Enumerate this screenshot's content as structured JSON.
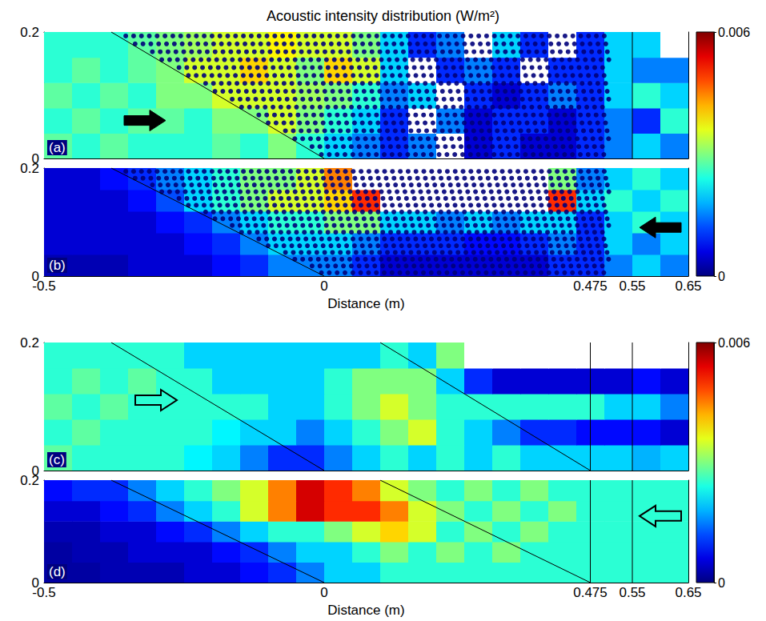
{
  "title": "Acoustic intensity distribution (W/m²)",
  "colorbars": [
    {
      "range": [
        0,
        0.006
      ],
      "ticks": [
        0,
        0.006
      ]
    },
    {
      "range": [
        0,
        0.006
      ],
      "ticks": [
        0,
        0.006
      ]
    }
  ],
  "chart_data": [
    {
      "type": "heatmap",
      "label": "(a)",
      "xlim": [
        -0.5,
        0.65
      ],
      "ylim": [
        0,
        0.2
      ],
      "yticks": [
        0,
        0.2
      ],
      "tick_labels": "y",
      "x": [
        -0.475,
        -0.425,
        -0.375,
        -0.325,
        -0.275,
        -0.225,
        -0.175,
        -0.125,
        -0.075,
        -0.025,
        0.025,
        0.075,
        0.125,
        0.175,
        0.225,
        0.275,
        0.325,
        0.375,
        0.425,
        0.475,
        0.525,
        0.575,
        0.625
      ],
      "y": [
        0.02,
        0.06,
        0.1,
        0.14,
        0.18
      ],
      "intensity": [
        [
          0.0028,
          0.0025,
          0.0028,
          0.0025,
          0.0025,
          0.0025,
          0.0028,
          0.0025,
          0.003,
          0.0025,
          0.002,
          0.0015,
          0.001,
          0.0015,
          0.007,
          0.0005,
          0.001,
          0.0005,
          0.0005,
          0.001,
          0.0015,
          0.002,
          0.0015
        ],
        [
          0.0025,
          0.0028,
          0.0025,
          0.0028,
          0.0028,
          0.0025,
          0.003,
          0.003,
          0.0035,
          0.003,
          0.0025,
          0.002,
          0.001,
          0.007,
          0.0015,
          0.0005,
          0.001,
          0.001,
          0.0005,
          0.001,
          0.0015,
          0.001,
          0.0025
        ],
        [
          0.0028,
          0.0025,
          0.0028,
          0.0025,
          0.003,
          0.003,
          0.0035,
          0.0035,
          0.0035,
          0.0032,
          0.003,
          0.0025,
          0.0015,
          0.002,
          0.007,
          0.001,
          0.0005,
          0.001,
          0.0015,
          0.001,
          0.002,
          0.0025,
          0.002
        ],
        [
          0.0025,
          0.0028,
          0.0025,
          0.0028,
          0.003,
          0.0035,
          0.0035,
          0.004,
          0.0035,
          0.003,
          0.004,
          0.0035,
          0.002,
          0.007,
          0.001,
          0.0015,
          0.001,
          0.007,
          0.001,
          0.001,
          0.002,
          0.0015,
          0.0015
        ],
        [
          0.0025,
          0.0025,
          0.0025,
          0.0028,
          0.003,
          0.0032,
          0.0035,
          0.0035,
          0.0038,
          0.0035,
          0.0035,
          0.003,
          0.002,
          0.001,
          0.0015,
          0.007,
          0.002,
          0.001,
          0.007,
          0.001,
          0.002,
          0.002,
          0.007
        ]
      ],
      "lines": [
        {
          "x": [
            -0.38,
            0
          ],
          "y": [
            0.2,
            0
          ]
        },
        {
          "x": [
            0.55,
            0.55
          ],
          "y": [
            0,
            0.2
          ]
        }
      ],
      "arrow": {
        "direction": "right",
        "style": "filled",
        "x": -0.32,
        "y": 0.06
      },
      "scatterers": {
        "x_max": 0.51,
        "pitch_x": 0.014,
        "pitch_y": 0.0125
      }
    },
    {
      "type": "heatmap",
      "label": "(b)",
      "xlim": [
        -0.5,
        0.65
      ],
      "ylim": [
        0,
        0.2
      ],
      "yticks": [
        0,
        0.2
      ],
      "xticks": [
        -0.5,
        0,
        0.475,
        0.55,
        0.65
      ],
      "x_label": "Distance (m)",
      "x": [
        -0.475,
        -0.425,
        -0.375,
        -0.325,
        -0.275,
        -0.225,
        -0.175,
        -0.125,
        -0.075,
        -0.025,
        0.025,
        0.075,
        0.125,
        0.175,
        0.225,
        0.275,
        0.325,
        0.375,
        0.425,
        0.475,
        0.525,
        0.575,
        0.625
      ],
      "y": [
        0.02,
        0.06,
        0.1,
        0.14,
        0.18
      ],
      "intensity": [
        [
          0.0003,
          0.0003,
          0.0003,
          0.0005,
          0.0005,
          0.0005,
          0.0008,
          0.001,
          0.0015,
          0.0015,
          0.0015,
          0.001,
          0.0005,
          0.0005,
          0.0005,
          0.0005,
          0.0005,
          0.0005,
          0.001,
          0.001,
          0.0015,
          0.002,
          0.0015
        ],
        [
          0.0005,
          0.0005,
          0.0005,
          0.0005,
          0.0005,
          0.0008,
          0.001,
          0.0015,
          0.002,
          0.002,
          0.002,
          0.0015,
          0.001,
          0.001,
          0.001,
          0.0008,
          0.0008,
          0.001,
          0.0015,
          0.001,
          0.002,
          0.0015,
          0.002
        ],
        [
          0.0005,
          0.0005,
          0.0005,
          0.0005,
          0.0008,
          0.001,
          0.0015,
          0.002,
          0.0025,
          0.0025,
          0.003,
          0.003,
          0.002,
          0.002,
          0.0015,
          0.002,
          0.0015,
          0.002,
          0.002,
          0.001,
          0.002,
          0.0025,
          0.002
        ],
        [
          0.0005,
          0.0005,
          0.0005,
          0.0008,
          0.0012,
          0.002,
          0.0025,
          0.003,
          0.0035,
          0.0035,
          0.004,
          0.005,
          0.007,
          0.007,
          0.007,
          0.007,
          0.007,
          0.007,
          0.005,
          0.002,
          0.0025,
          0.002,
          0.0025
        ],
        [
          0.0005,
          0.0005,
          0.0008,
          0.001,
          0.0015,
          0.002,
          0.0025,
          0.003,
          0.003,
          0.0035,
          0.0045,
          0.007,
          0.007,
          0.007,
          0.007,
          0.007,
          0.007,
          0.007,
          0.003,
          0.0015,
          0.002,
          0.0025,
          0.002
        ]
      ],
      "lines": [
        {
          "x": [
            -0.38,
            0
          ],
          "y": [
            0.2,
            0
          ]
        }
      ],
      "arrow": {
        "direction": "left",
        "style": "filled",
        "x": 0.6,
        "y": 0.09
      },
      "scatterers": {
        "x_max": 0.51,
        "pitch_x": 0.014,
        "pitch_y": 0.0125
      }
    },
    {
      "type": "heatmap",
      "label": "(c)",
      "xlim": [
        -0.5,
        0.65
      ],
      "ylim": [
        0,
        0.2
      ],
      "yticks": [
        0,
        0.2
      ],
      "tick_labels": "y",
      "x": [
        -0.475,
        -0.425,
        -0.375,
        -0.325,
        -0.275,
        -0.225,
        -0.175,
        -0.125,
        -0.075,
        -0.025,
        0.025,
        0.075,
        0.125,
        0.175,
        0.225,
        0.275,
        0.325,
        0.375,
        0.425,
        0.475,
        0.525,
        0.575,
        0.625
      ],
      "y": [
        0.02,
        0.06,
        0.1,
        0.14,
        0.18
      ],
      "intensity": [
        [
          0.0028,
          0.0025,
          0.0025,
          0.0025,
          0.0025,
          0.0022,
          0.002,
          0.0015,
          0.001,
          0.001,
          0.0015,
          0.002,
          0.0025,
          0.002,
          0.0025,
          0.002,
          0.0025,
          0.002,
          0.002,
          0.002,
          0.002,
          0.0018,
          0.002
        ],
        [
          0.0025,
          0.0028,
          0.0025,
          0.0025,
          0.0025,
          0.0025,
          0.0022,
          0.002,
          0.002,
          0.0015,
          0.002,
          0.0025,
          0.003,
          0.0035,
          0.0025,
          0.002,
          0.0015,
          0.001,
          0.001,
          0.0008,
          0.0008,
          0.0008,
          0.0005
        ],
        [
          0.0028,
          0.0025,
          0.0028,
          0.0025,
          0.0025,
          0.0025,
          0.0025,
          0.0025,
          0.002,
          0.002,
          0.0025,
          0.003,
          0.0035,
          0.003,
          0.0025,
          0.0025,
          0.0025,
          0.0025,
          0.0025,
          0.0025,
          0.002,
          0.002,
          0.0015
        ],
        [
          0.0025,
          0.0028,
          0.0025,
          0.0028,
          0.0025,
          0.0025,
          0.002,
          0.002,
          0.002,
          0.002,
          0.0025,
          0.003,
          0.003,
          0.003,
          0.002,
          0.001,
          0.0005,
          0.0005,
          0.0005,
          0.0005,
          0.0005,
          0.0008,
          0.0005
        ],
        [
          0.0025,
          0.0025,
          0.0025,
          0.0025,
          0.0025,
          0.002,
          0.002,
          0.002,
          0.002,
          0.002,
          0.002,
          0.002,
          0.0025,
          0.002,
          0.003,
          0.007,
          0.007,
          0.007,
          0.007,
          0.007,
          0.007,
          0.007,
          0.007
        ]
      ],
      "lines": [
        {
          "x": [
            -0.38,
            0
          ],
          "y": [
            0.2,
            0
          ]
        },
        {
          "x": [
            0.1,
            0.475
          ],
          "y": [
            0.2,
            0
          ]
        },
        {
          "x": [
            0.475,
            0.475
          ],
          "y": [
            0,
            0.2
          ]
        },
        {
          "x": [
            0.55,
            0.55
          ],
          "y": [
            0,
            0.2
          ]
        }
      ],
      "arrow": {
        "direction": "right",
        "style": "hollow",
        "x": -0.3,
        "y": 0.11
      }
    },
    {
      "type": "heatmap",
      "label": "(d)",
      "xlim": [
        -0.5,
        0.65
      ],
      "ylim": [
        0,
        0.2
      ],
      "yticks": [
        0,
        0.2
      ],
      "xticks": [
        -0.5,
        0,
        0.475,
        0.55,
        0.65
      ],
      "x_label": "Distance (m)",
      "x": [
        -0.475,
        -0.425,
        -0.375,
        -0.325,
        -0.275,
        -0.225,
        -0.175,
        -0.125,
        -0.075,
        -0.025,
        0.025,
        0.075,
        0.125,
        0.175,
        0.225,
        0.275,
        0.325,
        0.375,
        0.425,
        0.475,
        0.525,
        0.575,
        0.625
      ],
      "y": [
        0.02,
        0.06,
        0.1,
        0.14,
        0.18
      ],
      "intensity": [
        [
          0.0002,
          0.0002,
          0.0003,
          0.0003,
          0.0003,
          0.0005,
          0.0005,
          0.0008,
          0.001,
          0.0015,
          0.002,
          0.002,
          0.0025,
          0.0025,
          0.0025,
          0.0025,
          0.0025,
          0.0025,
          0.0025,
          0.0025,
          0.0025,
          0.0025,
          0.0025
        ],
        [
          0.0002,
          0.0003,
          0.0003,
          0.0005,
          0.0005,
          0.0005,
          0.0008,
          0.001,
          0.0015,
          0.002,
          0.002,
          0.0025,
          0.003,
          0.0025,
          0.003,
          0.0025,
          0.003,
          0.0025,
          0.0025,
          0.0025,
          0.0025,
          0.0025,
          0.0025
        ],
        [
          0.0003,
          0.0003,
          0.0005,
          0.0005,
          0.0008,
          0.001,
          0.0015,
          0.002,
          0.0025,
          0.0025,
          0.003,
          0.0035,
          0.004,
          0.0035,
          0.0025,
          0.003,
          0.0025,
          0.003,
          0.0025,
          0.0025,
          0.0025,
          0.0025,
          0.0025
        ],
        [
          0.0005,
          0.0005,
          0.0008,
          0.001,
          0.0015,
          0.002,
          0.0025,
          0.0035,
          0.0045,
          0.0055,
          0.005,
          0.005,
          0.0045,
          0.0035,
          0.003,
          0.0025,
          0.003,
          0.0025,
          0.003,
          0.0025,
          0.0025,
          0.0025,
          0.0025
        ],
        [
          0.0008,
          0.001,
          0.001,
          0.0015,
          0.002,
          0.0025,
          0.003,
          0.0035,
          0.0045,
          0.0055,
          0.005,
          0.0045,
          0.0035,
          0.003,
          0.0025,
          0.003,
          0.0025,
          0.003,
          0.0025,
          0.0025,
          0.0025,
          0.0025,
          0.0025
        ]
      ],
      "lines": [
        {
          "x": [
            -0.38,
            0
          ],
          "y": [
            0.2,
            0
          ]
        },
        {
          "x": [
            0.1,
            0.475
          ],
          "y": [
            0.2,
            0
          ]
        },
        {
          "x": [
            0.475,
            0.475
          ],
          "y": [
            0,
            0.2
          ]
        },
        {
          "x": [
            0.55,
            0.55
          ],
          "y": [
            0,
            0.2
          ]
        }
      ],
      "arrow": {
        "direction": "left",
        "style": "hollow",
        "x": 0.6,
        "y": 0.13
      }
    }
  ]
}
